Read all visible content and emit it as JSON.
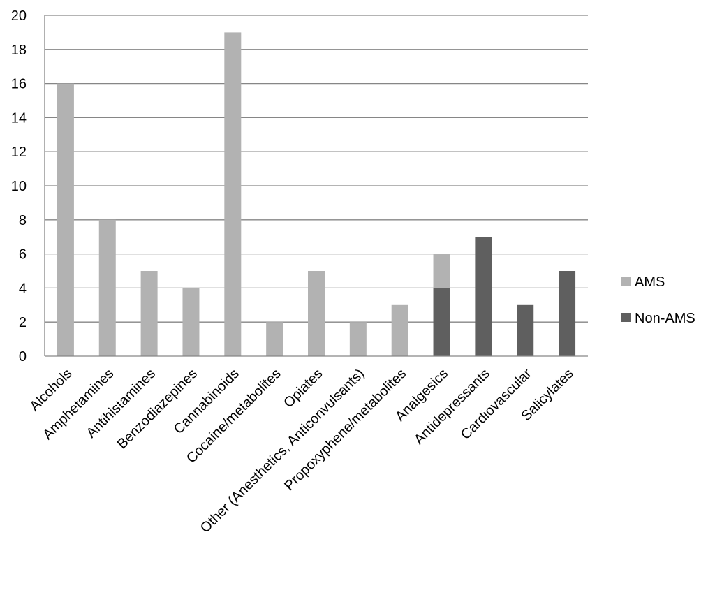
{
  "chart_data": {
    "type": "bar",
    "stacked": true,
    "categories": [
      "Alcohols",
      "Amphetamines",
      "Antihistamines",
      "Benzodiazepines",
      "Cannabinoids",
      "Cocaine/metabolites",
      "Opiates",
      "Other (Anesthetics, Anticonvulsants)",
      "Propoxyphene/metabolites",
      "Analgesics",
      "Antidepressants",
      "Cardiovascular",
      "Salicylates"
    ],
    "series": [
      {
        "name": "AMS",
        "color": "#b2b2b2",
        "values": [
          16,
          8,
          5,
          4,
          19,
          2,
          5,
          2,
          3,
          2,
          0,
          0,
          0
        ]
      },
      {
        "name": "Non-AMS",
        "color": "#5f5f5f",
        "values": [
          0,
          0,
          0,
          0,
          0,
          0,
          0,
          0,
          0,
          4,
          7,
          3,
          5
        ]
      }
    ],
    "stack_order": [
      "Non-AMS",
      "AMS"
    ],
    "ylim": [
      0,
      20
    ],
    "yticks": [
      0,
      2,
      4,
      6,
      8,
      10,
      12,
      14,
      16,
      18,
      20
    ],
    "grid": true,
    "legend": "right",
    "title": "",
    "xlabel": "",
    "ylabel": ""
  }
}
